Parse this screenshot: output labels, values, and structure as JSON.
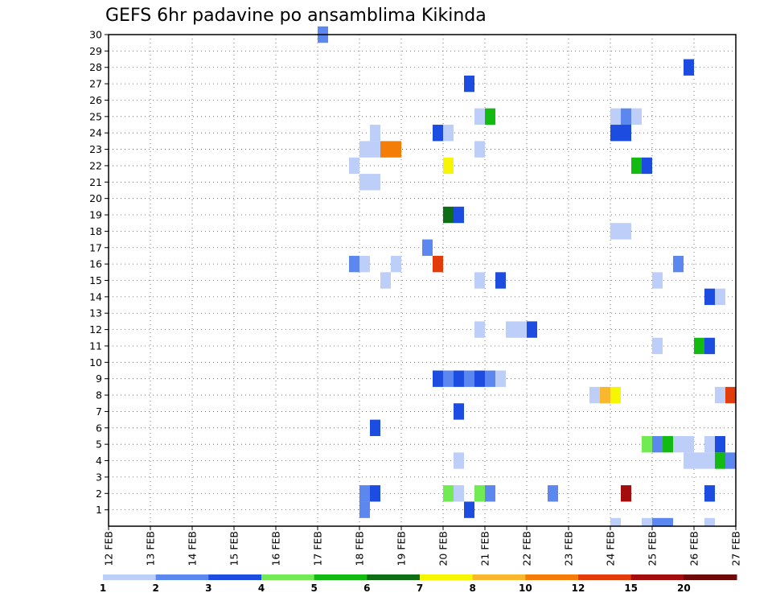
{
  "chart_data": {
    "type": "heatmap",
    "title": "GEFS 6hr padavine po ansamblima Kikinda",
    "xlabel": "",
    "ylabel": "",
    "x_ticks": [
      "12 FEB",
      "13 FEB",
      "14 FEB",
      "15 FEB",
      "16 FEB",
      "17 FEB",
      "18 FEB",
      "19 FEB",
      "20 FEB",
      "21 FEB",
      "22 FEB",
      "23 FEB",
      "24 FEB",
      "25 FEB",
      "26 FEB",
      "27 FEB"
    ],
    "y_ticks": [
      "1",
      "2",
      "3",
      "4",
      "5",
      "6",
      "7",
      "8",
      "9",
      "10",
      "11",
      "12",
      "13",
      "14",
      "15",
      "16",
      "17",
      "18",
      "19",
      "20",
      "21",
      "22",
      "23",
      "24",
      "25",
      "26",
      "27",
      "28",
      "29",
      "30"
    ],
    "xlim": [
      "12 FEB",
      "27 FEB"
    ],
    "ylim": [
      0,
      30
    ],
    "grid": true,
    "colorbar": {
      "levels": [
        "1",
        "2",
        "3",
        "4",
        "5",
        "6",
        "7",
        "8",
        "10",
        "12",
        "15",
        "20"
      ],
      "colors": [
        "#bdcef8",
        "#5b87ef",
        "#1d4de0",
        "#71ea53",
        "#12ba12",
        "#0f6e14",
        "#f6f600",
        "#f9b72e",
        "#f37d07",
        "#e33c0b",
        "#a30d0d",
        "#6e0909"
      ]
    },
    "cells": [
      {
        "member": 30,
        "day": 17.0,
        "value": 2
      },
      {
        "member": 28,
        "day": 25.75,
        "value": 3
      },
      {
        "member": 27,
        "day": 20.5,
        "value": 3
      },
      {
        "member": 25,
        "day": 20.75,
        "value": 1
      },
      {
        "member": 25,
        "day": 21.0,
        "value": 5
      },
      {
        "member": 25,
        "day": 24.0,
        "value": 1
      },
      {
        "member": 25,
        "day": 24.25,
        "value": 2
      },
      {
        "member": 25,
        "day": 24.5,
        "value": 1
      },
      {
        "member": 24,
        "day": 18.25,
        "value": 1
      },
      {
        "member": 24,
        "day": 19.75,
        "value": 3
      },
      {
        "member": 24,
        "day": 20.0,
        "value": 1
      },
      {
        "member": 24,
        "day": 24.0,
        "value": 3
      },
      {
        "member": 24,
        "day": 24.25,
        "value": 3
      },
      {
        "member": 23,
        "day": 18.0,
        "value": 1
      },
      {
        "member": 23,
        "day": 18.25,
        "value": 1
      },
      {
        "member": 23,
        "day": 18.5,
        "value": 10
      },
      {
        "member": 23,
        "day": 18.75,
        "value": 10
      },
      {
        "member": 23,
        "day": 20.75,
        "value": 1
      },
      {
        "member": 22,
        "day": 17.75,
        "value": 1
      },
      {
        "member": 22,
        "day": 20.0,
        "value": 7
      },
      {
        "member": 22,
        "day": 24.5,
        "value": 5
      },
      {
        "member": 22,
        "day": 24.75,
        "value": 3
      },
      {
        "member": 21,
        "day": 18.0,
        "value": 1
      },
      {
        "member": 21,
        "day": 18.25,
        "value": 1
      },
      {
        "member": 19,
        "day": 20.0,
        "value": 6
      },
      {
        "member": 19,
        "day": 20.25,
        "value": 3
      },
      {
        "member": 18,
        "day": 24.0,
        "value": 1
      },
      {
        "member": 18,
        "day": 24.25,
        "value": 1
      },
      {
        "member": 17,
        "day": 19.5,
        "value": 2
      },
      {
        "member": 16,
        "day": 17.75,
        "value": 2
      },
      {
        "member": 16,
        "day": 18.0,
        "value": 1
      },
      {
        "member": 16,
        "day": 18.75,
        "value": 1
      },
      {
        "member": 16,
        "day": 19.75,
        "value": 12
      },
      {
        "member": 16,
        "day": 25.5,
        "value": 2
      },
      {
        "member": 15,
        "day": 18.5,
        "value": 1
      },
      {
        "member": 15,
        "day": 20.75,
        "value": 1
      },
      {
        "member": 15,
        "day": 21.25,
        "value": 3
      },
      {
        "member": 15,
        "day": 25.0,
        "value": 1
      },
      {
        "member": 14,
        "day": 26.25,
        "value": 3
      },
      {
        "member": 14,
        "day": 26.5,
        "value": 1
      },
      {
        "member": 12,
        "day": 20.75,
        "value": 1
      },
      {
        "member": 12,
        "day": 21.5,
        "value": 1
      },
      {
        "member": 12,
        "day": 21.75,
        "value": 1
      },
      {
        "member": 12,
        "day": 22.0,
        "value": 3
      },
      {
        "member": 11,
        "day": 25.0,
        "value": 1
      },
      {
        "member": 11,
        "day": 26.0,
        "value": 5
      },
      {
        "member": 11,
        "day": 26.25,
        "value": 3
      },
      {
        "member": 9,
        "day": 19.75,
        "value": 3
      },
      {
        "member": 9,
        "day": 20.0,
        "value": 2
      },
      {
        "member": 9,
        "day": 20.25,
        "value": 3
      },
      {
        "member": 9,
        "day": 20.5,
        "value": 2
      },
      {
        "member": 9,
        "day": 20.75,
        "value": 3
      },
      {
        "member": 9,
        "day": 21.0,
        "value": 2
      },
      {
        "member": 9,
        "day": 21.25,
        "value": 1
      },
      {
        "member": 8,
        "day": 23.5,
        "value": 1
      },
      {
        "member": 8,
        "day": 23.75,
        "value": 8
      },
      {
        "member": 8,
        "day": 24.0,
        "value": 7
      },
      {
        "member": 8,
        "day": 26.5,
        "value": 1
      },
      {
        "member": 8,
        "day": 26.75,
        "value": 12
      },
      {
        "member": 7,
        "day": 20.25,
        "value": 3
      },
      {
        "member": 6,
        "day": 18.25,
        "value": 3
      },
      {
        "member": 5,
        "day": 24.75,
        "value": 4
      },
      {
        "member": 5,
        "day": 25.0,
        "value": 2
      },
      {
        "member": 5,
        "day": 25.25,
        "value": 5
      },
      {
        "member": 5,
        "day": 25.5,
        "value": 1
      },
      {
        "member": 5,
        "day": 25.75,
        "value": 1
      },
      {
        "member": 5,
        "day": 26.25,
        "value": 1
      },
      {
        "member": 5,
        "day": 26.5,
        "value": 3
      },
      {
        "member": 4,
        "day": 20.25,
        "value": 1
      },
      {
        "member": 4,
        "day": 25.75,
        "value": 1
      },
      {
        "member": 4,
        "day": 26.0,
        "value": 1
      },
      {
        "member": 4,
        "day": 26.25,
        "value": 1
      },
      {
        "member": 4,
        "day": 26.5,
        "value": 5
      },
      {
        "member": 4,
        "day": 26.75,
        "value": 2
      },
      {
        "member": 2,
        "day": 18.0,
        "value": 2
      },
      {
        "member": 2,
        "day": 18.25,
        "value": 3
      },
      {
        "member": 2,
        "day": 20.0,
        "value": 4
      },
      {
        "member": 2,
        "day": 20.25,
        "value": 1
      },
      {
        "member": 2,
        "day": 20.75,
        "value": 4
      },
      {
        "member": 2,
        "day": 21.0,
        "value": 2
      },
      {
        "member": 2,
        "day": 22.5,
        "value": 2
      },
      {
        "member": 2,
        "day": 24.25,
        "value": 15
      },
      {
        "member": 2,
        "day": 26.25,
        "value": 3
      },
      {
        "member": 1,
        "day": 18.0,
        "value": 2
      },
      {
        "member": 1,
        "day": 20.5,
        "value": 3
      },
      {
        "member": 0,
        "day": 24.0,
        "value": 1
      },
      {
        "member": 0,
        "day": 24.75,
        "value": 1
      },
      {
        "member": 0,
        "day": 25.0,
        "value": 2
      },
      {
        "member": 0,
        "day": 25.25,
        "value": 2
      },
      {
        "member": 0,
        "day": 26.25,
        "value": 1
      }
    ]
  }
}
